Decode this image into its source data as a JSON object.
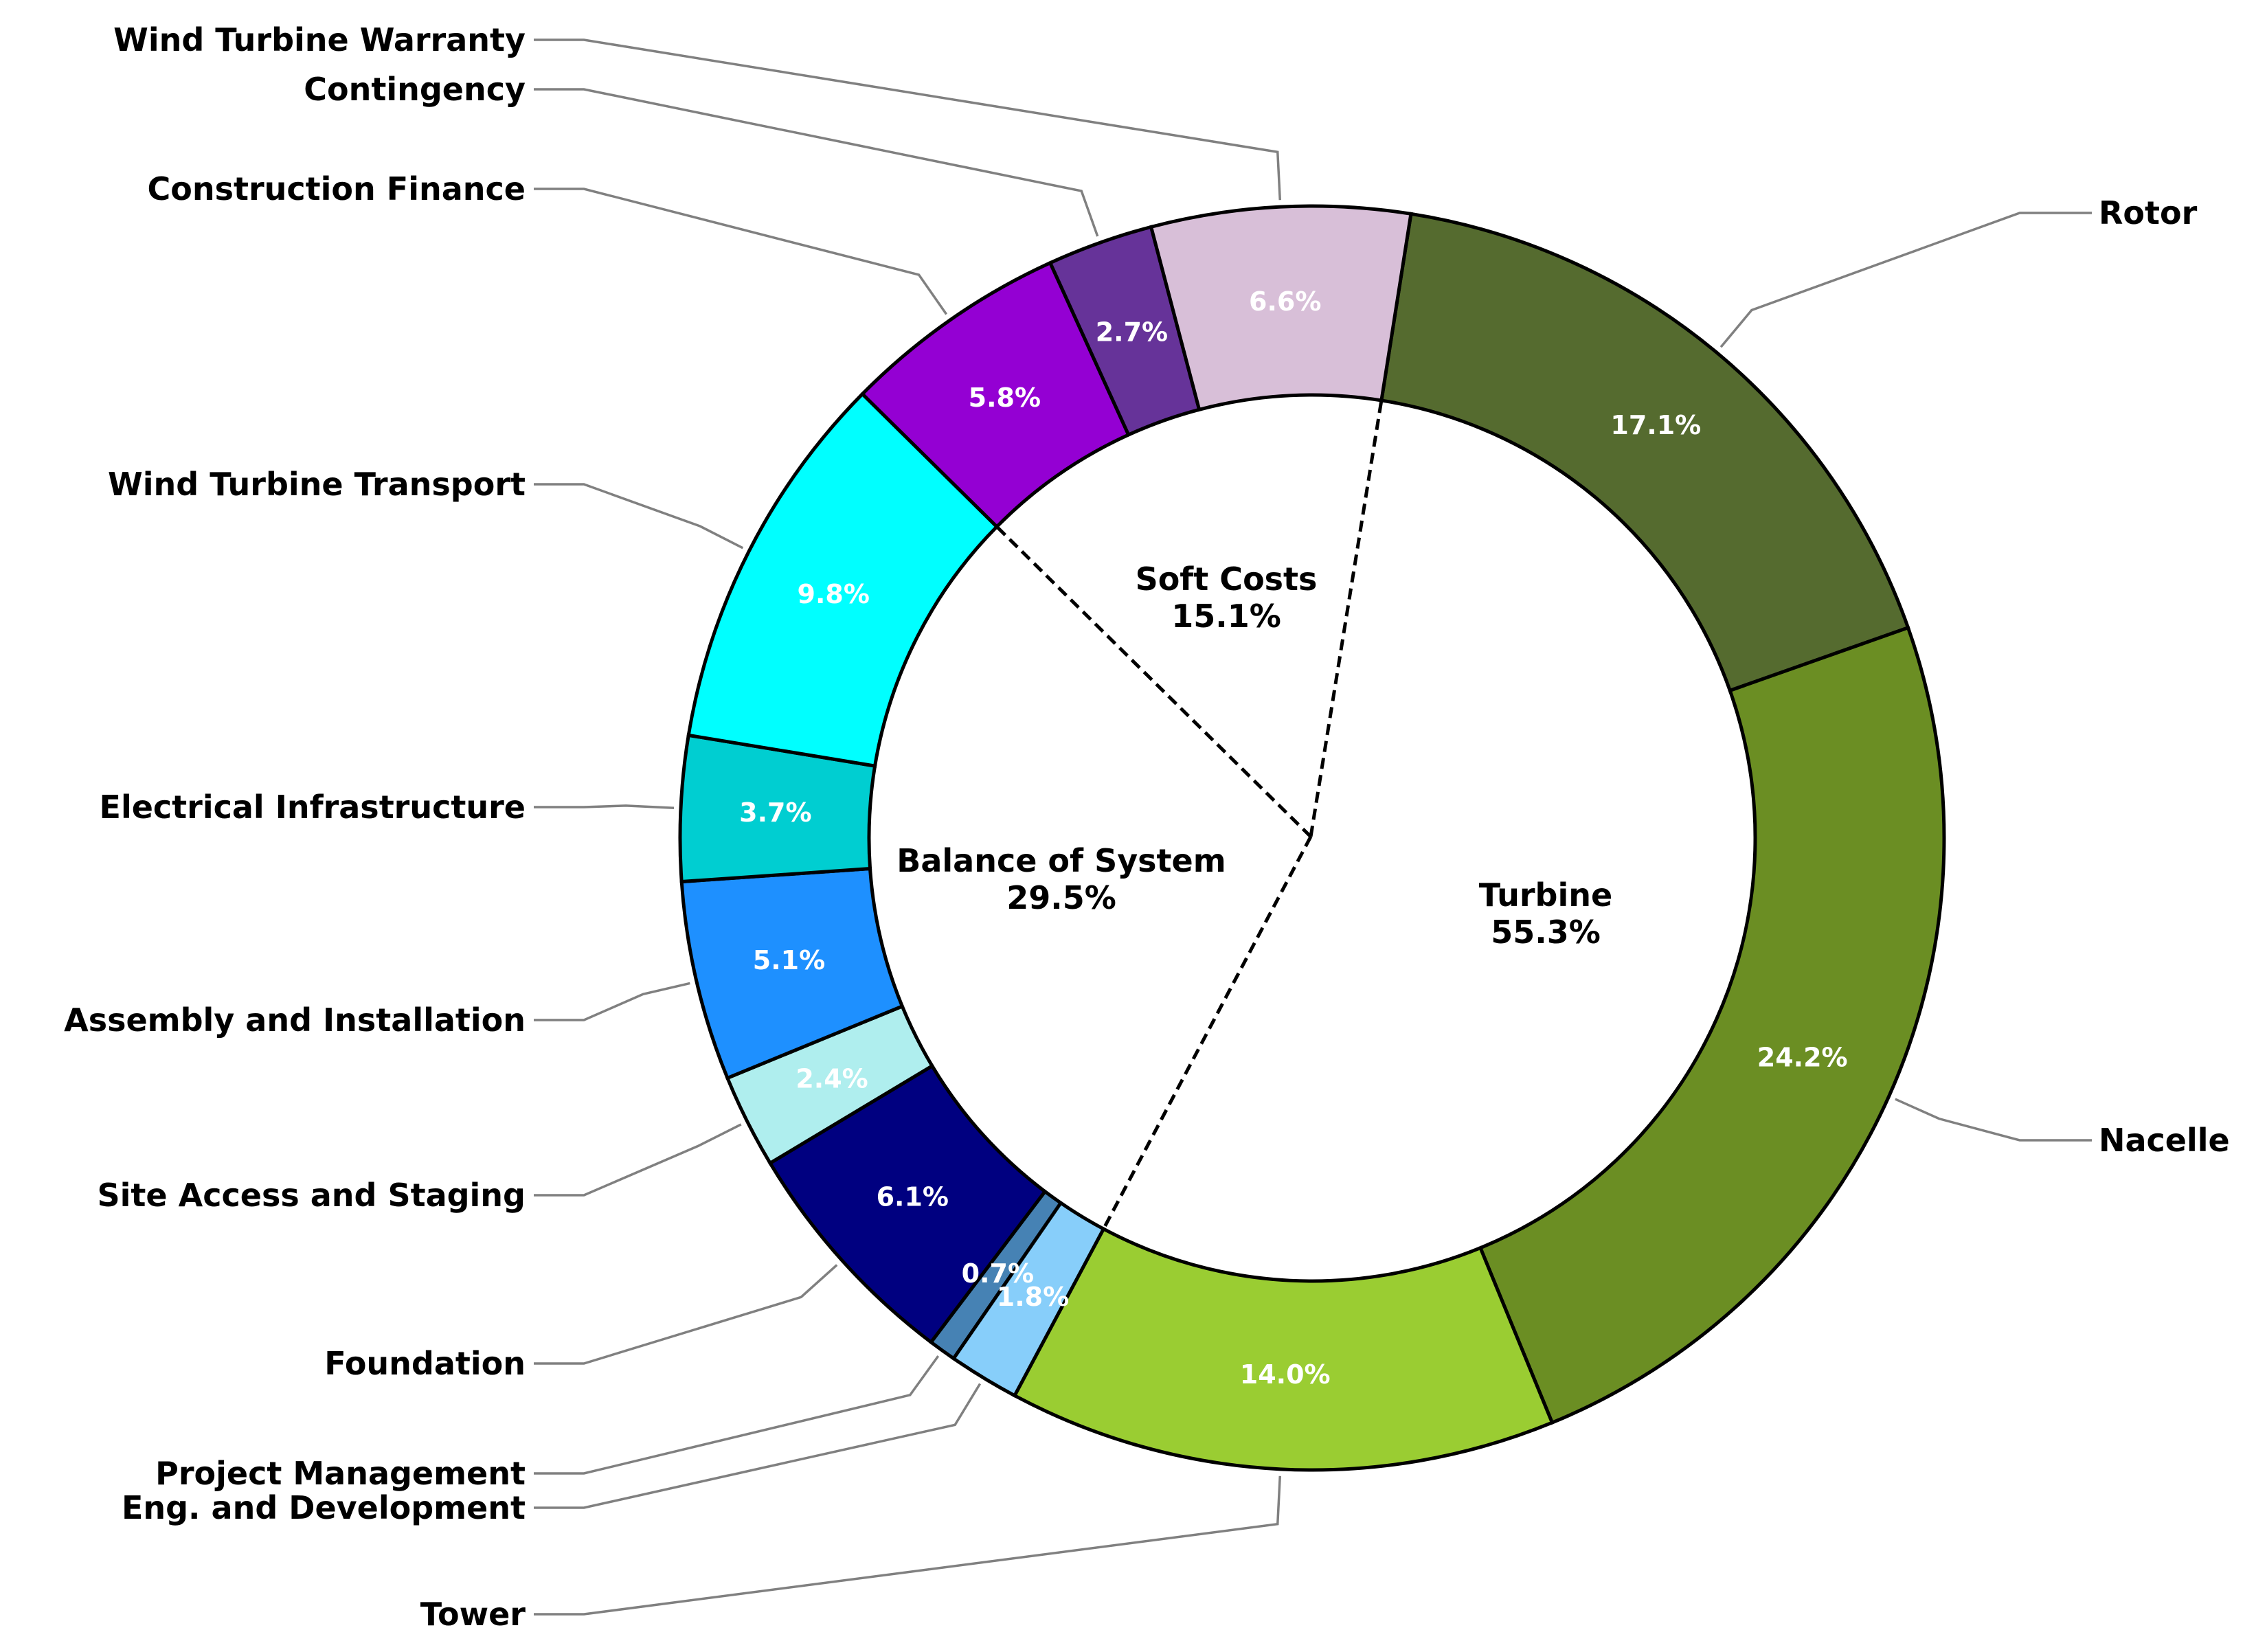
{
  "chart_data": {
    "type": "pie",
    "variant": "donut",
    "title": "",
    "start_angle_deg": 81,
    "direction": "clockwise",
    "slices": [
      {
        "label": "Rotor",
        "value": 17.1,
        "pct_label": "17.1%",
        "color": "#556B2F",
        "group": "Turbine"
      },
      {
        "label": "Nacelle",
        "value": 24.2,
        "pct_label": "24.2%",
        "color": "#6B8E23",
        "group": "Turbine"
      },
      {
        "label": "Tower",
        "value": 14.0,
        "pct_label": "14.0%",
        "color": "#9ACD32",
        "group": "Turbine"
      },
      {
        "label": "Eng. and Development",
        "value": 1.8,
        "pct_label": "1.8%",
        "color": "#87CEFA",
        "group": "Balance of System"
      },
      {
        "label": "Project Management",
        "value": 0.7,
        "pct_label": "0.7%",
        "color": "#4682B4",
        "group": "Balance of System"
      },
      {
        "label": "Foundation",
        "value": 6.1,
        "pct_label": "6.1%",
        "color": "#000080",
        "group": "Balance of System"
      },
      {
        "label": "Site Access and Staging",
        "value": 2.4,
        "pct_label": "2.4%",
        "color": "#AFEEEE",
        "group": "Balance of System"
      },
      {
        "label": "Assembly and Installation",
        "value": 5.1,
        "pct_label": "5.1%",
        "color": "#1E90FF",
        "group": "Balance of System"
      },
      {
        "label": "Electrical Infrastructure",
        "value": 3.7,
        "pct_label": "3.7%",
        "color": "#00CED1",
        "group": "Balance of System"
      },
      {
        "label": "Wind Turbine Transport",
        "value": 9.8,
        "pct_label": "9.8%",
        "color": "#00FFFF",
        "group": "Balance of System"
      },
      {
        "label": "Construction Finance",
        "value": 5.8,
        "pct_label": "5.8%",
        "color": "#9400D3",
        "group": "Soft Costs"
      },
      {
        "label": "Contingency",
        "value": 2.7,
        "pct_label": "2.7%",
        "color": "#663399",
        "group": "Soft Costs"
      },
      {
        "label": "Wind Turbine Warranty",
        "value": 6.6,
        "pct_label": "6.6%",
        "color": "#D8BFD8",
        "group": "Soft Costs"
      }
    ],
    "groups": [
      {
        "name": "Turbine",
        "pct_label": "55.3%",
        "value": 55.3
      },
      {
        "name": "Balance of System",
        "pct_label": "29.5%",
        "value": 29.5
      },
      {
        "name": "Soft Costs",
        "pct_label": "15.1%",
        "value": 15.1
      }
    ]
  }
}
